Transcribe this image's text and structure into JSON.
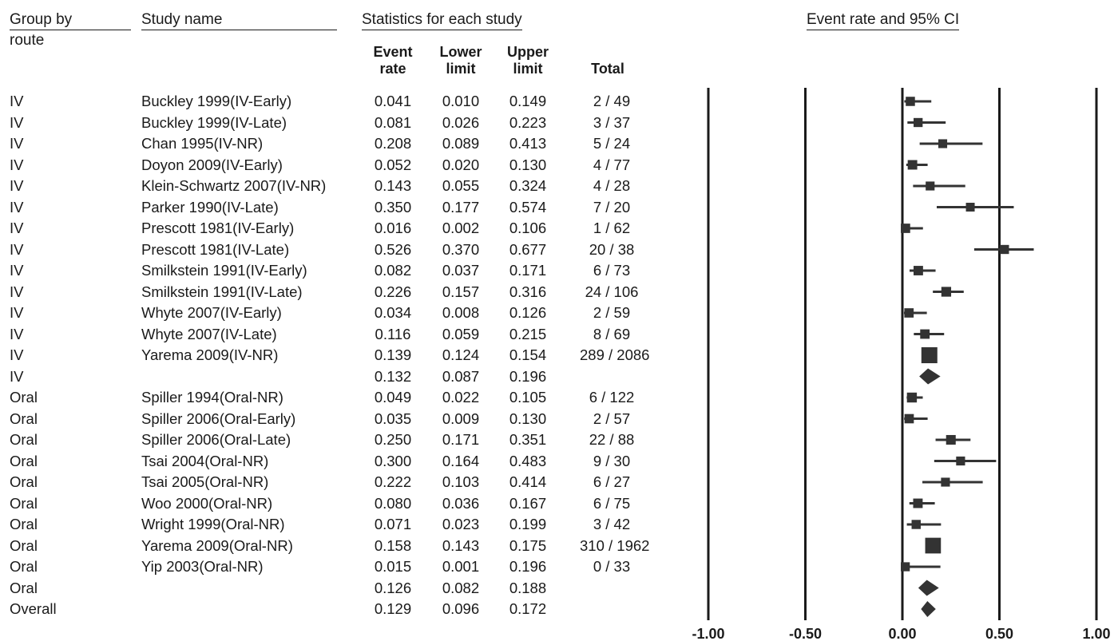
{
  "headers": {
    "group_by": "Group by",
    "group_by_sub": "route",
    "study_name": "Study name",
    "stats_title": "Statistics for each study",
    "event_rate": [
      "Event",
      "rate"
    ],
    "lower_limit": [
      "Lower",
      "limit"
    ],
    "upper_limit": [
      "Upper",
      "limit"
    ],
    "total": "Total",
    "plot_title": "Event rate and 95% CI"
  },
  "chart_data": {
    "type": "forest",
    "title": "Event rate and 95% CI",
    "xlim": [
      -1.0,
      1.0
    ],
    "xticks": [
      "-1.00",
      "-0.50",
      "0.00",
      "0.50",
      "1.00"
    ],
    "rows": [
      {
        "group": "IV",
        "study": "Buckley 1999(IV-Early)",
        "rate": "0.041",
        "lower": "0.010",
        "upper": "0.149",
        "total": "2 / 49",
        "kind": "study",
        "n": 49
      },
      {
        "group": "IV",
        "study": "Buckley 1999(IV-Late)",
        "rate": "0.081",
        "lower": "0.026",
        "upper": "0.223",
        "total": "3 / 37",
        "kind": "study",
        "n": 37
      },
      {
        "group": "IV",
        "study": "Chan 1995(IV-NR)",
        "rate": "0.208",
        "lower": "0.089",
        "upper": "0.413",
        "total": "5 / 24",
        "kind": "study",
        "n": 24
      },
      {
        "group": "IV",
        "study": "Doyon 2009(IV-Early)",
        "rate": "0.052",
        "lower": "0.020",
        "upper": "0.130",
        "total": "4 / 77",
        "kind": "study",
        "n": 77
      },
      {
        "group": "IV",
        "study": "Klein-Schwartz 2007(IV-NR)",
        "rate": "0.143",
        "lower": "0.055",
        "upper": "0.324",
        "total": "4 / 28",
        "kind": "study",
        "n": 28
      },
      {
        "group": "IV",
        "study": "Parker 1990(IV-Late)",
        "rate": "0.350",
        "lower": "0.177",
        "upper": "0.574",
        "total": "7 / 20",
        "kind": "study",
        "n": 20
      },
      {
        "group": "IV",
        "study": "Prescott 1981(IV-Early)",
        "rate": "0.016",
        "lower": "0.002",
        "upper": "0.106",
        "total": "1 / 62",
        "kind": "study",
        "n": 62
      },
      {
        "group": "IV",
        "study": "Prescott 1981(IV-Late)",
        "rate": "0.526",
        "lower": "0.370",
        "upper": "0.677",
        "total": "20 / 38",
        "kind": "study",
        "n": 38
      },
      {
        "group": "IV",
        "study": "Smilkstein 1991(IV-Early)",
        "rate": "0.082",
        "lower": "0.037",
        "upper": "0.171",
        "total": "6 / 73",
        "kind": "study",
        "n": 73
      },
      {
        "group": "IV",
        "study": "Smilkstein 1991(IV-Late)",
        "rate": "0.226",
        "lower": "0.157",
        "upper": "0.316",
        "total": "24 / 106",
        "kind": "study",
        "n": 106
      },
      {
        "group": "IV",
        "study": "Whyte 2007(IV-Early)",
        "rate": "0.034",
        "lower": "0.008",
        "upper": "0.126",
        "total": "2 / 59",
        "kind": "study",
        "n": 59
      },
      {
        "group": "IV",
        "study": "Whyte 2007(IV-Late)",
        "rate": "0.116",
        "lower": "0.059",
        "upper": "0.215",
        "total": "8 / 69",
        "kind": "study",
        "n": 69
      },
      {
        "group": "IV",
        "study": "Yarema 2009(IV-NR)",
        "rate": "0.139",
        "lower": "0.124",
        "upper": "0.154",
        "total": "289 / 2086",
        "kind": "study",
        "n": 2086
      },
      {
        "group": "IV",
        "study": "",
        "rate": "0.132",
        "lower": "0.087",
        "upper": "0.196",
        "total": "",
        "kind": "summary",
        "n": 0
      },
      {
        "group": "Oral",
        "study": "Spiller 1994(Oral-NR)",
        "rate": "0.049",
        "lower": "0.022",
        "upper": "0.105",
        "total": "6 / 122",
        "kind": "study",
        "n": 122
      },
      {
        "group": "Oral",
        "study": "Spiller 2006(Oral-Early)",
        "rate": "0.035",
        "lower": "0.009",
        "upper": "0.130",
        "total": "2 / 57",
        "kind": "study",
        "n": 57
      },
      {
        "group": "Oral",
        "study": "Spiller 2006(Oral-Late)",
        "rate": "0.250",
        "lower": "0.171",
        "upper": "0.351",
        "total": "22 / 88",
        "kind": "study",
        "n": 88
      },
      {
        "group": "Oral",
        "study": "Tsai 2004(Oral-NR)",
        "rate": "0.300",
        "lower": "0.164",
        "upper": "0.483",
        "total": "9 / 30",
        "kind": "study",
        "n": 30
      },
      {
        "group": "Oral",
        "study": "Tsai 2005(Oral-NR)",
        "rate": "0.222",
        "lower": "0.103",
        "upper": "0.414",
        "total": "6 / 27",
        "kind": "study",
        "n": 27
      },
      {
        "group": "Oral",
        "study": "Woo 2000(Oral-NR)",
        "rate": "0.080",
        "lower": "0.036",
        "upper": "0.167",
        "total": "6 / 75",
        "kind": "study",
        "n": 75
      },
      {
        "group": "Oral",
        "study": "Wright 1999(Oral-NR)",
        "rate": "0.071",
        "lower": "0.023",
        "upper": "0.199",
        "total": "3 / 42",
        "kind": "study",
        "n": 42
      },
      {
        "group": "Oral",
        "study": "Yarema 2009(Oral-NR)",
        "rate": "0.158",
        "lower": "0.143",
        "upper": "0.175",
        "total": "310 / 1962",
        "kind": "study",
        "n": 1962
      },
      {
        "group": "Oral",
        "study": "Yip 2003(Oral-NR)",
        "rate": "0.015",
        "lower": "0.001",
        "upper": "0.196",
        "total": "0 / 33",
        "kind": "study",
        "n": 33
      },
      {
        "group": "Oral",
        "study": "",
        "rate": "0.126",
        "lower": "0.082",
        "upper": "0.188",
        "total": "",
        "kind": "summary",
        "n": 0
      },
      {
        "group": "Overall",
        "study": "",
        "rate": "0.129",
        "lower": "0.096",
        "upper": "0.172",
        "total": "",
        "kind": "summary",
        "n": 0
      }
    ]
  }
}
